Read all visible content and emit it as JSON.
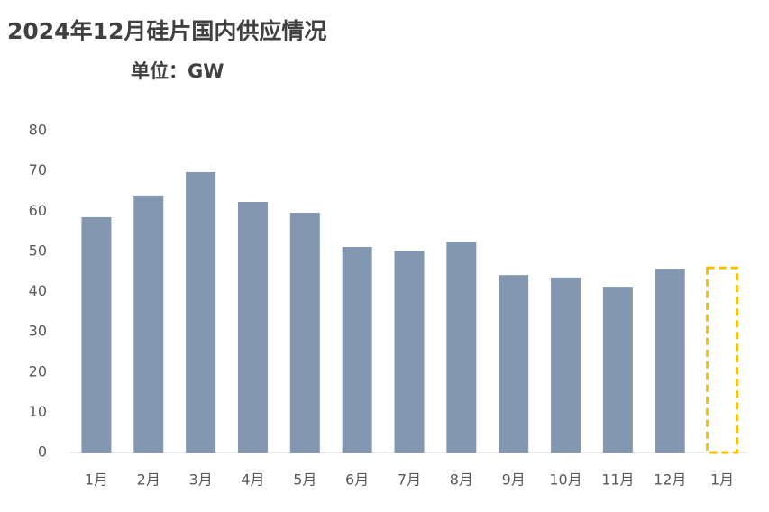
{
  "chart_data": {
    "type": "bar",
    "title": "2024年12月硅片国内供应情况",
    "subtitle": "单位：GW",
    "categories": [
      "1月",
      "2月",
      "3月",
      "4月",
      "5月",
      "6月",
      "7月",
      "8月",
      "9月",
      "10月",
      "11月",
      "12月",
      "1月"
    ],
    "values": [
      58.5,
      63.9,
      69.7,
      62.3,
      59.6,
      51.1,
      50.2,
      52.4,
      44.1,
      43.5,
      41.2,
      45.7,
      45.9
    ],
    "color": "#8497b0",
    "dashed_bars": [
      12
    ],
    "dashed_color": "#f5c000",
    "ylim": [
      0,
      80
    ],
    "yticks": [
      0,
      10,
      20,
      30,
      40,
      50,
      60,
      70,
      80
    ],
    "grid": false
  }
}
